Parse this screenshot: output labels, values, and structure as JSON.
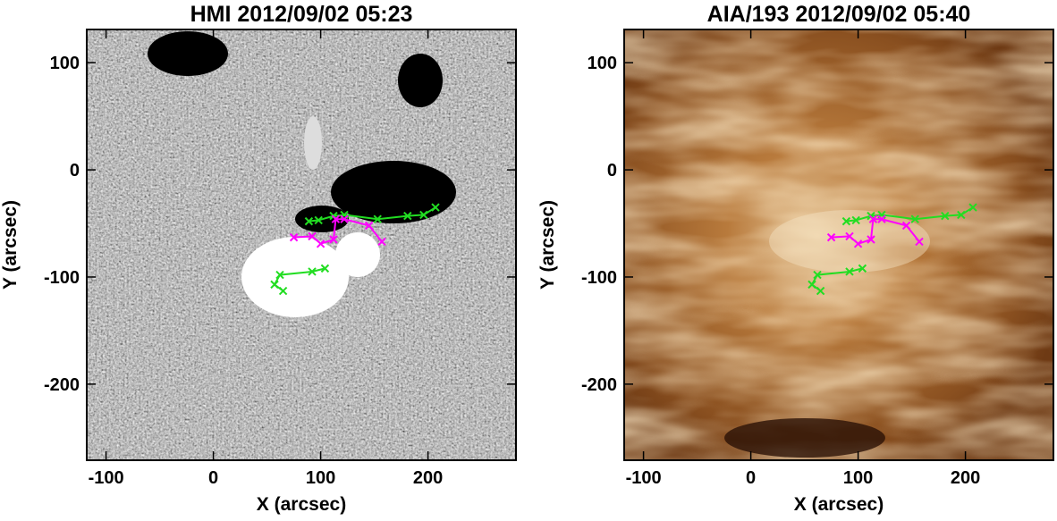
{
  "chart_data": [
    {
      "type": "line",
      "title": "HMI 2012/09/02 05:23",
      "x_label": "X (arcsec)",
      "y_label": "Y (arcsec)",
      "xlim": [
        -118,
        282
      ],
      "ylim": [
        -271,
        131
      ],
      "xticks": [
        -100,
        0,
        100,
        200
      ],
      "yticks": [
        -200,
        -100,
        0,
        100
      ],
      "series": [
        {
          "color": "#22dd22",
          "x": [
            89,
            98,
            112,
            122,
            153,
            181,
            196,
            207
          ],
          "values": [
            -48,
            -47,
            -43,
            -42,
            -46,
            -43,
            -42,
            -35
          ]
        },
        {
          "color": "#22dd22",
          "x": [
            65,
            57,
            62,
            92,
            104
          ],
          "values": [
            -113,
            -107,
            -98,
            -95,
            -92
          ]
        },
        {
          "color": "#ff00ff",
          "x": [
            75,
            92,
            100,
            112,
            114,
            122,
            145,
            157
          ],
          "values": [
            -63,
            -62,
            -69,
            -65,
            -46,
            -46,
            -52,
            -67
          ]
        }
      ]
    },
    {
      "type": "line",
      "title": "AIA/193 2012/09/02 05:40",
      "x_label": "X (arcsec)",
      "y_label": "Y (arcsec)",
      "xlim": [
        -118,
        282
      ],
      "ylim": [
        -271,
        131
      ],
      "xticks": [
        -100,
        0,
        100,
        200
      ],
      "yticks": [
        -200,
        -100,
        0,
        100
      ],
      "series": [
        {
          "color": "#22dd22",
          "x": [
            89,
            98,
            112,
            122,
            153,
            181,
            196,
            207
          ],
          "values": [
            -48,
            -47,
            -43,
            -42,
            -46,
            -43,
            -42,
            -35
          ]
        },
        {
          "color": "#22dd22",
          "x": [
            65,
            57,
            62,
            92,
            104
          ],
          "values": [
            -113,
            -107,
            -98,
            -95,
            -92
          ]
        },
        {
          "color": "#ff00ff",
          "x": [
            75,
            92,
            100,
            112,
            114,
            122,
            145,
            157
          ],
          "values": [
            -63,
            -62,
            -69,
            -65,
            -46,
            -46,
            -52,
            -67
          ]
        }
      ]
    }
  ]
}
